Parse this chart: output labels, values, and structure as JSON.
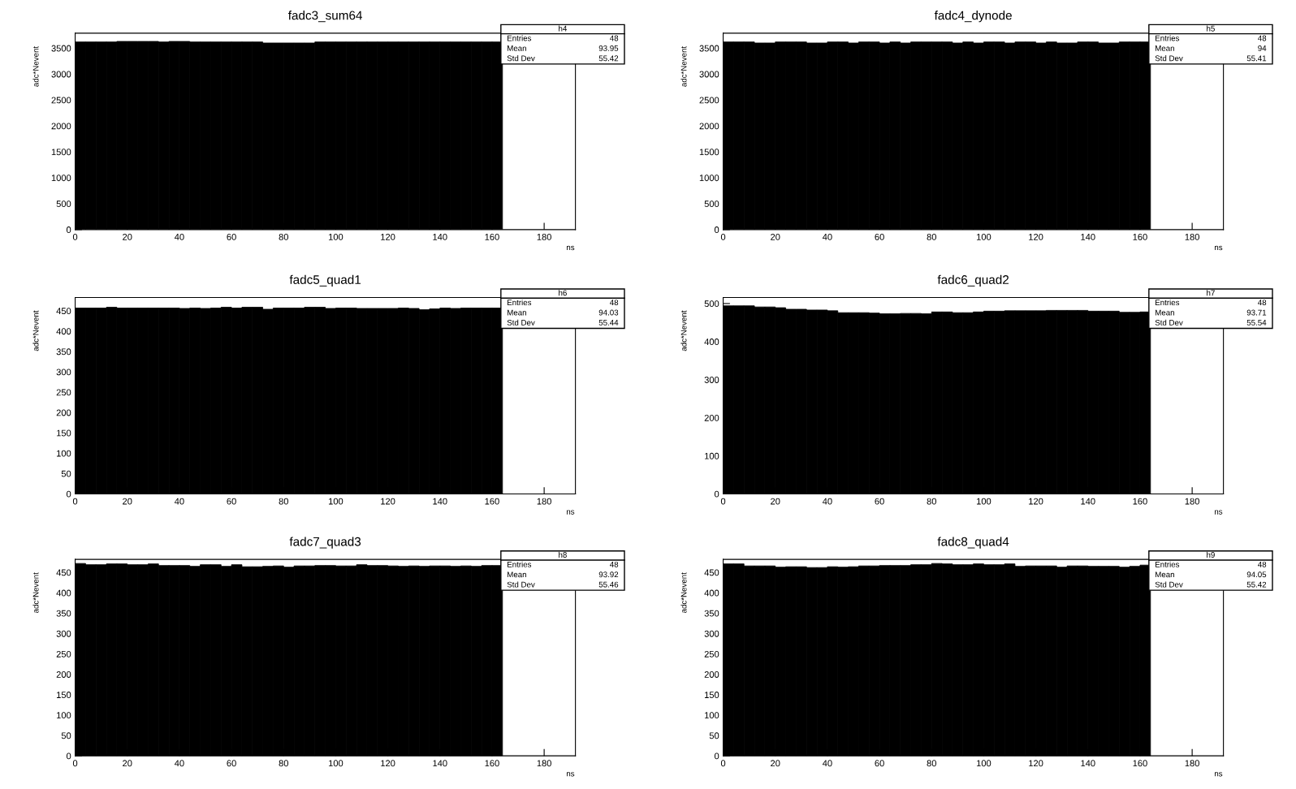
{
  "chart_data": [
    {
      "type": "histogram",
      "title": "fadc3_sum64",
      "xlabel": "ns",
      "ylabel": "adc*Nevent",
      "color": "#000000",
      "bins": [
        0,
        4,
        8,
        12,
        16,
        20,
        24,
        28,
        32,
        36,
        40,
        44,
        48,
        52,
        56,
        60,
        64,
        68,
        72,
        76,
        80,
        84,
        88,
        92,
        96,
        100,
        104,
        108,
        112,
        116,
        120,
        124,
        128,
        132,
        136,
        140,
        144,
        148,
        152,
        156,
        160,
        164,
        168,
        172,
        176,
        180,
        184,
        188,
        192
      ],
      "values": [
        3620,
        3620,
        3620,
        3620,
        3630,
        3630,
        3630,
        3630,
        3620,
        3630,
        3630,
        3620,
        3620,
        3620,
        3620,
        3620,
        3620,
        3620,
        3600,
        3600,
        3600,
        3600,
        3600,
        3620,
        3620,
        3620,
        3620,
        3620,
        3620,
        3620,
        3620,
        3620,
        3620,
        3620,
        3620,
        3620,
        3620,
        3620,
        3620,
        3620,
        3620,
        null,
        null,
        null,
        null,
        null,
        null,
        null
      ],
      "xlim": [
        0,
        192
      ],
      "xticks": [
        0,
        20,
        40,
        60,
        80,
        100,
        120,
        140,
        160,
        180
      ],
      "ylim": [
        0,
        3790
      ],
      "yticks": [
        0,
        500,
        1000,
        1500,
        2000,
        2500,
        3000,
        3500
      ],
      "annotations": [
        "h4",
        "Entries",
        "48",
        "Mean",
        "93.95",
        "Std Dev",
        "55.42"
      ]
    },
    {
      "type": "histogram",
      "title": "fadc4_dynode",
      "xlabel": "ns",
      "ylabel": "adc*Nevent",
      "color": "#000000",
      "bins": [
        0,
        4,
        8,
        12,
        16,
        20,
        24,
        28,
        32,
        36,
        40,
        44,
        48,
        52,
        56,
        60,
        64,
        68,
        72,
        76,
        80,
        84,
        88,
        92,
        96,
        100,
        104,
        108,
        112,
        116,
        120,
        124,
        128,
        132,
        136,
        140,
        144,
        148,
        152,
        156,
        160,
        164,
        168,
        172,
        176,
        180,
        184,
        188,
        192
      ],
      "values": [
        3620,
        3620,
        3620,
        3600,
        3600,
        3620,
        3620,
        3620,
        3600,
        3600,
        3620,
        3620,
        3600,
        3620,
        3620,
        3600,
        3620,
        3600,
        3620,
        3620,
        3620,
        3620,
        3600,
        3620,
        3600,
        3620,
        3620,
        3600,
        3620,
        3620,
        3600,
        3620,
        3600,
        3600,
        3620,
        3620,
        3600,
        3600,
        3620,
        3620,
        3620,
        null,
        null,
        null,
        null,
        null,
        null,
        null
      ],
      "xlim": [
        0,
        192
      ],
      "xticks": [
        0,
        20,
        40,
        60,
        80,
        100,
        120,
        140,
        160,
        180
      ],
      "ylim": [
        0,
        3790
      ],
      "yticks": [
        0,
        500,
        1000,
        1500,
        2000,
        2500,
        3000,
        3500
      ],
      "annotations": [
        "h5",
        "Entries",
        "48",
        "Mean",
        "94",
        "Std Dev",
        "55.41"
      ]
    },
    {
      "type": "histogram",
      "title": "fadc5_quad1",
      "xlabel": "ns",
      "ylabel": "adc*Nevent",
      "color": "#000000",
      "bins": [
        0,
        4,
        8,
        12,
        16,
        20,
        24,
        28,
        32,
        36,
        40,
        44,
        48,
        52,
        56,
        60,
        64,
        68,
        72,
        76,
        80,
        84,
        88,
        92,
        96,
        100,
        104,
        108,
        112,
        116,
        120,
        124,
        128,
        132,
        136,
        140,
        144,
        148,
        152,
        156,
        160,
        164,
        168,
        172,
        176,
        180,
        184,
        188,
        192
      ],
      "values": [
        457,
        457,
        457,
        459,
        457,
        457,
        457,
        457,
        457,
        457,
        456,
        457,
        456,
        457,
        459,
        457,
        459,
        459,
        454,
        457,
        457,
        457,
        459,
        459,
        456,
        457,
        457,
        456,
        456,
        456,
        456,
        457,
        456,
        453,
        455,
        457,
        456,
        457,
        457,
        457,
        457,
        null,
        null,
        null,
        null,
        null,
        null,
        null
      ],
      "xlim": [
        0,
        192
      ],
      "xticks": [
        0,
        20,
        40,
        60,
        80,
        100,
        120,
        140,
        160,
        180
      ],
      "ylim": [
        0,
        483
      ],
      "yticks": [
        0,
        50,
        100,
        150,
        200,
        250,
        300,
        350,
        400,
        450
      ],
      "annotations": [
        "h6",
        "Entries",
        "48",
        "Mean",
        "94.03",
        "Std Dev",
        "55.44"
      ]
    },
    {
      "type": "histogram",
      "title": "fadc6_quad2",
      "xlabel": "ns",
      "ylabel": "adc*Nevent",
      "color": "#000000",
      "bins": [
        0,
        4,
        8,
        12,
        16,
        20,
        24,
        28,
        32,
        36,
        40,
        44,
        48,
        52,
        56,
        60,
        64,
        68,
        72,
        76,
        80,
        84,
        88,
        92,
        96,
        100,
        104,
        108,
        112,
        116,
        120,
        124,
        128,
        132,
        136,
        140,
        144,
        148,
        152,
        156,
        160,
        164,
        168,
        172,
        176,
        180,
        184,
        188,
        192
      ],
      "values": [
        494,
        494,
        494,
        491,
        491,
        489,
        485,
        485,
        483,
        483,
        481,
        476,
        476,
        476,
        475,
        473,
        473,
        474,
        474,
        473,
        478,
        478,
        476,
        476,
        478,
        480,
        480,
        481,
        481,
        481,
        481,
        482,
        482,
        482,
        482,
        480,
        480,
        480,
        477,
        477,
        478,
        null,
        null,
        null,
        null,
        null,
        null,
        null
      ],
      "xlim": [
        0,
        192
      ],
      "xticks": [
        0,
        20,
        40,
        60,
        80,
        100,
        120,
        140,
        160,
        180
      ],
      "ylim": [
        0,
        516
      ],
      "yticks": [
        0,
        100,
        200,
        300,
        400,
        500
      ],
      "annotations": [
        "h7",
        "Entries",
        "48",
        "Mean",
        "93.71",
        "Std Dev",
        "55.54"
      ]
    },
    {
      "type": "histogram",
      "title": "fadc7_quad3",
      "xlabel": "ns",
      "ylabel": "adc*Nevent",
      "color": "#000000",
      "bins": [
        0,
        4,
        8,
        12,
        16,
        20,
        24,
        28,
        32,
        36,
        40,
        44,
        48,
        52,
        56,
        60,
        64,
        68,
        72,
        76,
        80,
        84,
        88,
        92,
        96,
        100,
        104,
        108,
        112,
        116,
        120,
        124,
        128,
        132,
        136,
        140,
        144,
        148,
        152,
        156,
        160,
        164,
        168,
        172,
        176,
        180,
        184,
        188,
        192
      ],
      "values": [
        472,
        469,
        469,
        471,
        471,
        469,
        469,
        471,
        467,
        467,
        467,
        465,
        469,
        469,
        465,
        469,
        464,
        464,
        465,
        466,
        463,
        466,
        466,
        467,
        467,
        466,
        466,
        469,
        467,
        467,
        466,
        465,
        466,
        465,
        466,
        466,
        465,
        466,
        465,
        467,
        467,
        null,
        null,
        null,
        null,
        null,
        null,
        null
      ],
      "xlim": [
        0,
        192
      ],
      "xticks": [
        0,
        20,
        40,
        60,
        80,
        100,
        120,
        140,
        160,
        180
      ],
      "ylim": [
        0,
        482
      ],
      "yticks": [
        0,
        50,
        100,
        150,
        200,
        250,
        300,
        350,
        400,
        450
      ],
      "annotations": [
        "h8",
        "Entries",
        "48",
        "Mean",
        "93.92",
        "Std Dev",
        "55.46"
      ]
    },
    {
      "type": "histogram",
      "title": "fadc8_quad4",
      "xlabel": "ns",
      "ylabel": "adc*Nevent",
      "color": "#000000",
      "bins": [
        0,
        4,
        8,
        12,
        16,
        20,
        24,
        28,
        32,
        36,
        40,
        44,
        48,
        52,
        56,
        60,
        64,
        68,
        72,
        76,
        80,
        84,
        88,
        92,
        96,
        100,
        104,
        108,
        112,
        116,
        120,
        124,
        128,
        132,
        136,
        140,
        144,
        148,
        152,
        156,
        160,
        164,
        168,
        172,
        176,
        180,
        184,
        188,
        192
      ],
      "values": [
        471,
        471,
        466,
        466,
        466,
        463,
        464,
        464,
        462,
        462,
        464,
        463,
        464,
        466,
        466,
        467,
        467,
        467,
        469,
        469,
        472,
        471,
        469,
        469,
        471,
        469,
        469,
        471,
        465,
        466,
        466,
        466,
        463,
        466,
        466,
        465,
        465,
        465,
        463,
        465,
        468,
        null,
        null,
        null,
        null,
        null,
        null,
        null
      ],
      "xlim": [
        0,
        192
      ],
      "xticks": [
        0,
        20,
        40,
        60,
        80,
        100,
        120,
        140,
        160,
        180
      ],
      "ylim": [
        0,
        482
      ],
      "yticks": [
        0,
        50,
        100,
        150,
        200,
        250,
        300,
        350,
        400,
        450
      ],
      "annotations": [
        "h9",
        "Entries",
        "48",
        "Mean",
        "94.05",
        "Std Dev",
        "55.42"
      ]
    }
  ]
}
